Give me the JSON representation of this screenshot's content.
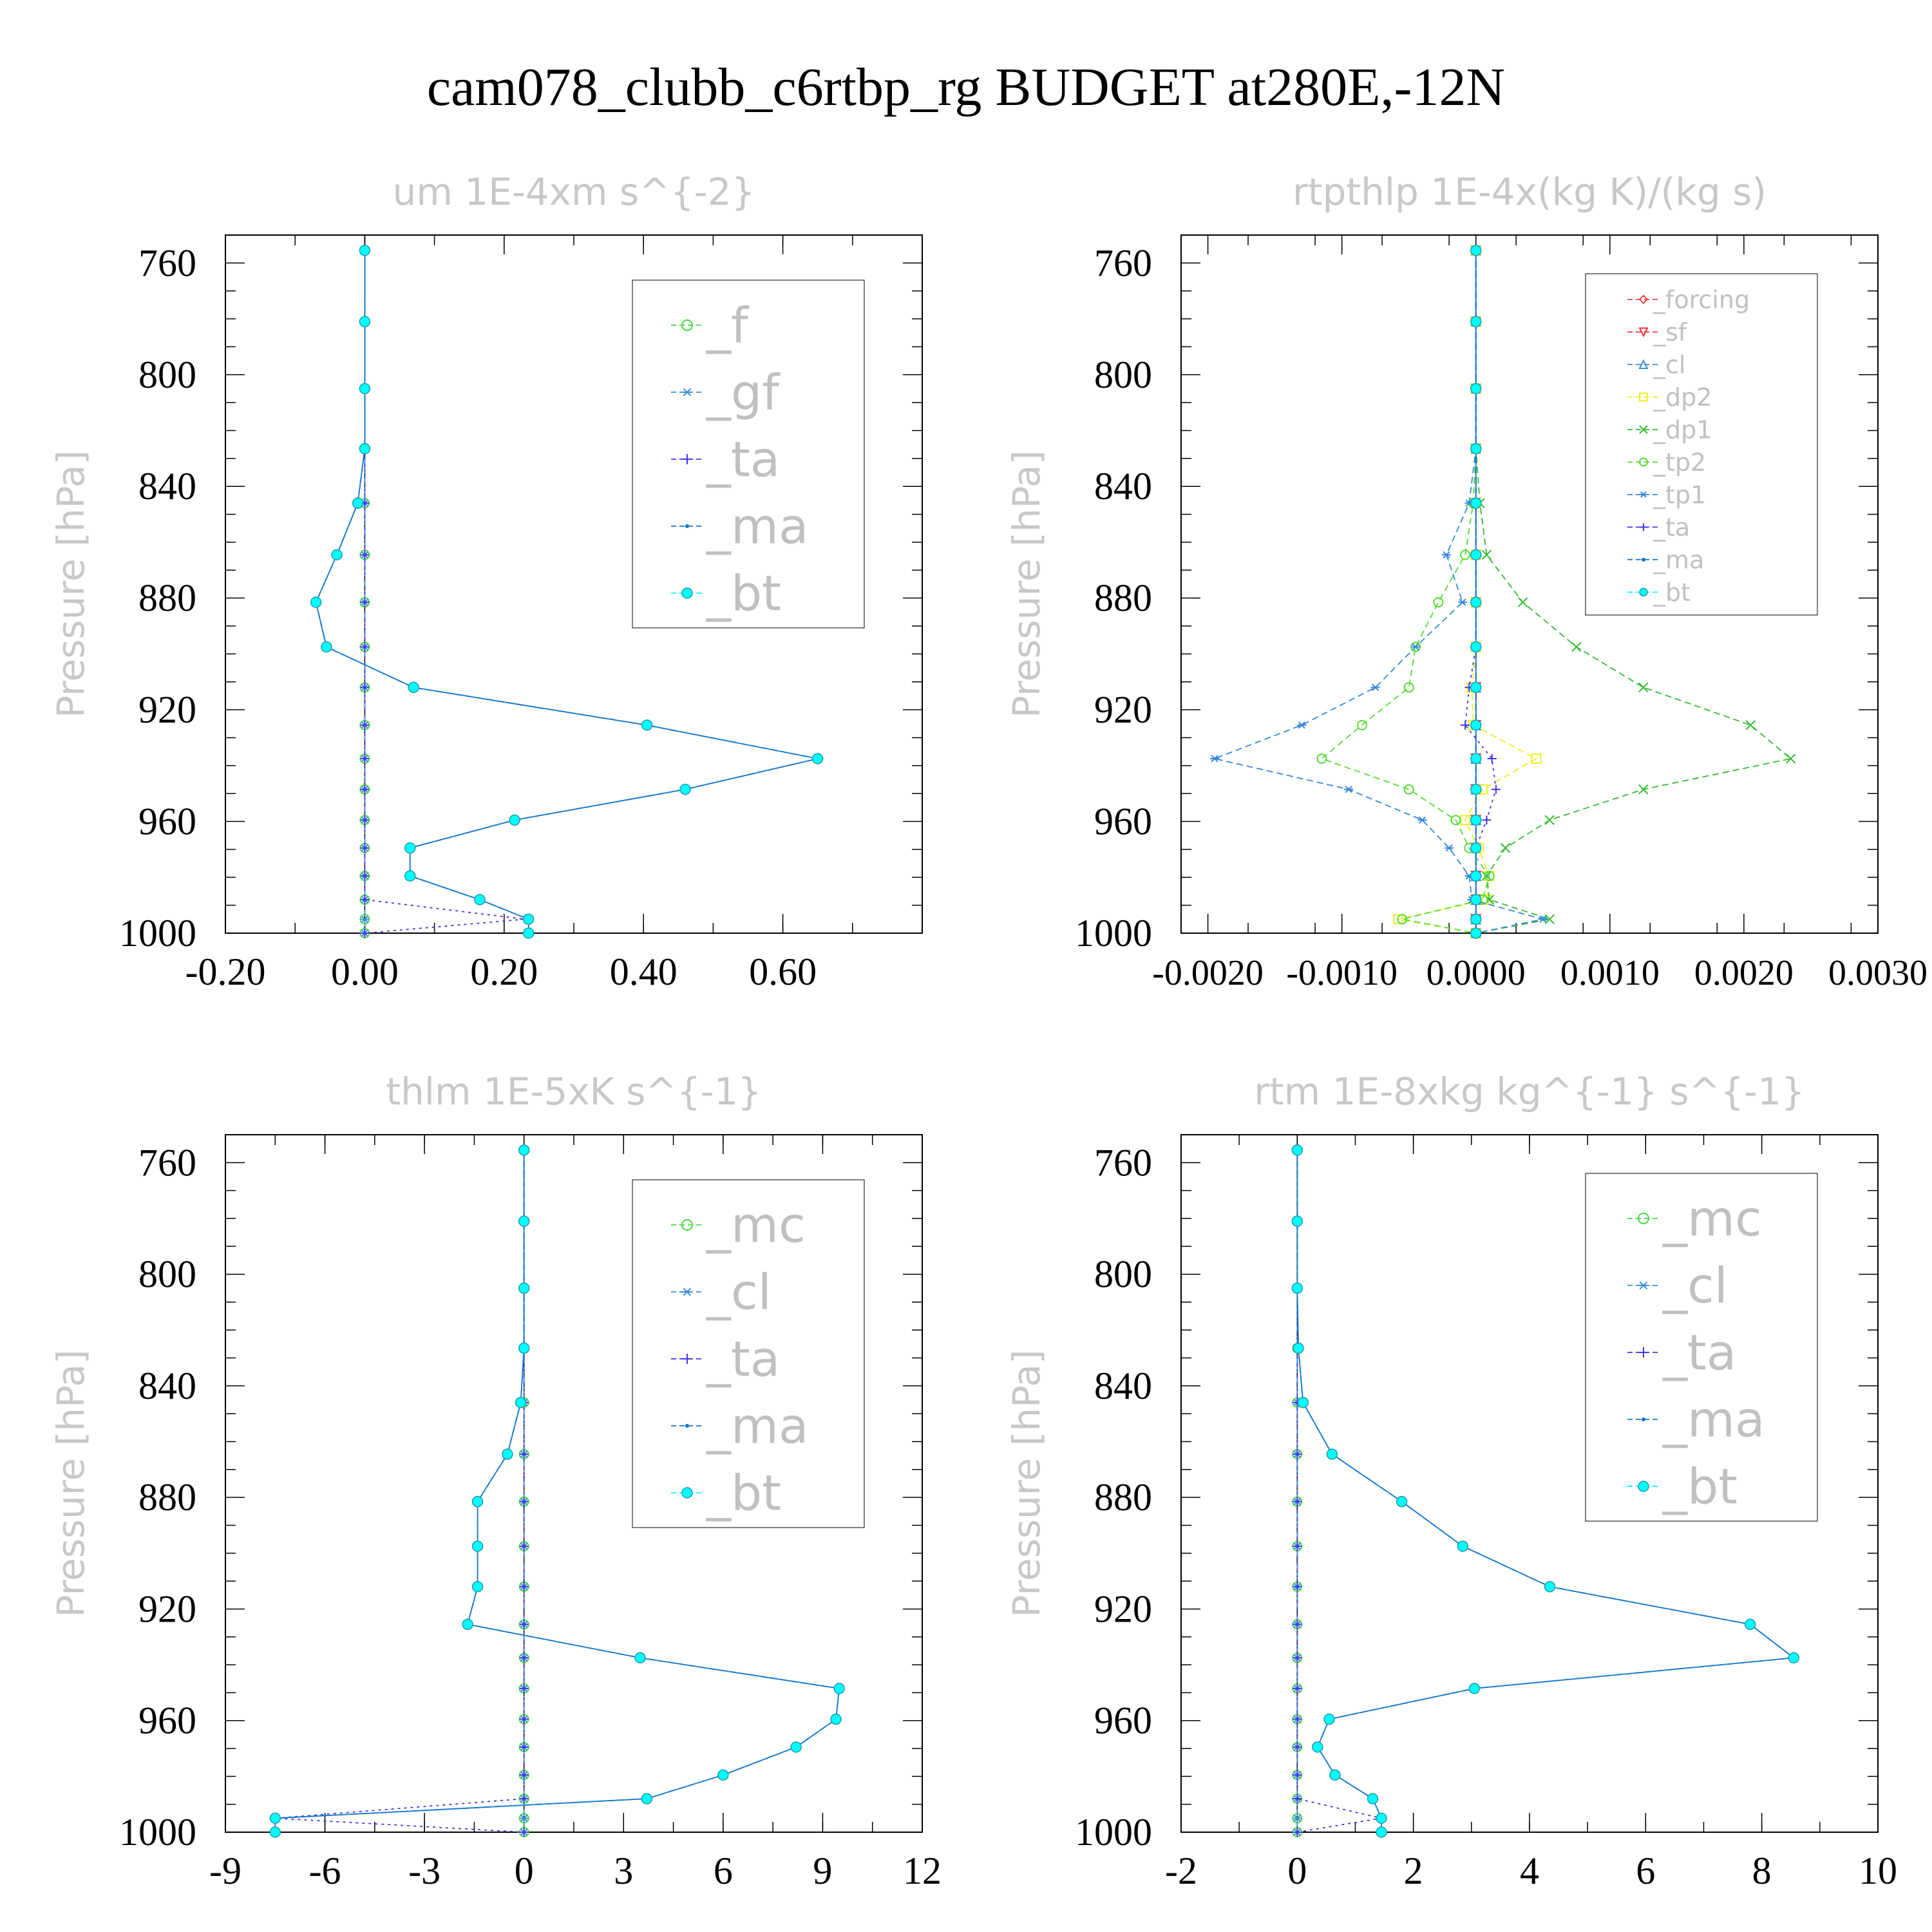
{
  "title": "cam078_clubb_c6rtbp_rg  BUDGET at280E,-12N",
  "colors": {
    "_f": "#44dd44",
    "_gf": "#3a8fd6",
    "_ta": "#4433ee",
    "_ma": "#1177cc",
    "_bt": "#00ffff",
    "_mc": "#44dd44",
    "_cl": "#3a8fd6",
    "_forcing": "#ee4444",
    "_sf": "#ee3333",
    "_dp2": "#eeee22",
    "_dp1": "#33bb33",
    "_tp2": "#55dd33",
    "_tp1": "#3388dd"
  },
  "chart_data": [
    {
      "type": "line",
      "title": "um  1E-4xm s^{-2}",
      "ylabel": "Pressure [hPa]",
      "xlabel": "",
      "x_ticks": [
        "-0.20",
        "0.00",
        "0.20",
        "0.40",
        "0.60"
      ],
      "y_ticks": [
        "760",
        "800",
        "840",
        "880",
        "920",
        "960",
        "1000"
      ],
      "xlim": [
        -0.2,
        0.8
      ],
      "ylim": [
        750,
        1000
      ],
      "legend": "top-right",
      "pressure": [
        755.5,
        781,
        805,
        826.5,
        846,
        864.5,
        881.5,
        897.5,
        912,
        925.5,
        937.5,
        948.5,
        959.5,
        969.5,
        979.5,
        988,
        995,
        1000
      ],
      "series": [
        {
          "name": "_f",
          "marker": "circle-open",
          "values": [
            0,
            0,
            0,
            0,
            0,
            0,
            0,
            0,
            0,
            0,
            0,
            0,
            0,
            0,
            0,
            0,
            0,
            0
          ]
        },
        {
          "name": "_gf",
          "marker": "asterisk",
          "values": [
            0,
            0,
            0,
            0,
            0,
            0,
            0,
            0,
            0,
            0,
            0,
            0,
            0,
            0,
            0,
            0,
            0,
            0
          ]
        },
        {
          "name": "_ta",
          "marker": "plus",
          "values": [
            0,
            0,
            0,
            0,
            0,
            0,
            0,
            0,
            0,
            0,
            0,
            0,
            0,
            0,
            0,
            0,
            0.23,
            0
          ]
        },
        {
          "name": "_ma",
          "marker": "dot",
          "values": [
            0,
            0,
            0,
            0,
            -0.01,
            -0.04,
            -0.07,
            -0.055,
            0.07,
            0.405,
            0.65,
            0.46,
            0.215,
            0.065,
            0.065,
            0.165,
            0.235,
            0.235
          ]
        },
        {
          "name": "_bt",
          "marker": "filled-circle",
          "values": [
            0,
            0,
            0,
            0,
            -0.01,
            -0.04,
            -0.07,
            -0.055,
            0.07,
            0.405,
            0.65,
            0.46,
            0.215,
            0.065,
            0.065,
            0.165,
            0.235,
            0.235
          ]
        }
      ]
    },
    {
      "type": "line",
      "title": "rtpthlp  1E-4x(kg K)/(kg s)",
      "ylabel": "Pressure [hPa]",
      "xlabel": "",
      "x_ticks": [
        "-0.0020",
        "-0.0010",
        "0.0000",
        "0.0010",
        "0.0020",
        "0.0030"
      ],
      "y_ticks": [
        "760",
        "800",
        "840",
        "880",
        "920",
        "960",
        "1000"
      ],
      "xlim": [
        -0.0022,
        0.003
      ],
      "ylim": [
        750,
        1000
      ],
      "legend": "top-right",
      "pressure": [
        755.5,
        781,
        805,
        826.5,
        846,
        864.5,
        881.5,
        897.5,
        912,
        925.5,
        937.5,
        948.5,
        959.5,
        969.5,
        979.5,
        988,
        995,
        1000
      ],
      "series": [
        {
          "name": "_forcing",
          "marker": "diamond-open",
          "values": [
            0,
            0,
            0,
            0,
            0,
            0,
            0,
            0,
            0,
            0,
            0,
            0,
            0,
            0,
            0,
            0,
            0,
            0
          ]
        },
        {
          "name": "_sf",
          "marker": "triangle-down-open",
          "values": [
            0,
            0,
            0,
            0,
            0,
            0,
            0,
            0,
            0,
            0,
            0,
            0,
            0,
            0,
            0,
            0,
            0,
            0
          ]
        },
        {
          "name": "_cl",
          "marker": "triangle-open",
          "values": [
            0,
            0,
            0,
            0,
            0,
            0,
            0,
            0,
            0,
            0,
            0,
            0,
            0,
            0,
            0,
            0,
            0,
            0
          ]
        },
        {
          "name": "_dp2",
          "marker": "square-open",
          "values": [
            0,
            0,
            0,
            0,
            0,
            0,
            0,
            0,
            -3e-05,
            -2e-05,
            0.00045,
            5e-05,
            -8e-05,
            2e-05,
            0.0001,
            8e-05,
            -0.00058,
            0
          ]
        },
        {
          "name": "_dp1",
          "marker": "x",
          "values": [
            0,
            0,
            0,
            0,
            3e-05,
            8e-05,
            0.00035,
            0.00075,
            0.00125,
            0.00205,
            0.00235,
            0.00125,
            0.00055,
            0.00022,
            8e-05,
            0.0001,
            0.00055,
            0
          ]
        },
        {
          "name": "_tp2",
          "marker": "circle-open",
          "values": [
            0,
            0,
            0,
            0,
            -2e-05,
            -8e-05,
            -0.00028,
            -0.00045,
            -0.0005,
            -0.00085,
            -0.00115,
            -0.0005,
            -0.00015,
            -5e-05,
            0.0001,
            5e-05,
            -0.00055,
            0
          ]
        },
        {
          "name": "_tp1",
          "marker": "asterisk",
          "values": [
            0,
            0,
            0,
            0,
            -5e-05,
            -0.00022,
            -0.0001,
            -0.00045,
            -0.00075,
            -0.0013,
            -0.00195,
            -0.00095,
            -0.0004,
            -0.0002,
            -5e-05,
            -3e-05,
            0.0005,
            0
          ]
        },
        {
          "name": "_ta",
          "marker": "plus",
          "values": [
            0,
            0,
            0,
            0,
            0,
            0,
            0,
            0,
            -5e-05,
            -8e-05,
            0.00012,
            0.00015,
            8e-05,
            0,
            0,
            0,
            0,
            0
          ]
        },
        {
          "name": "_ma",
          "marker": "dot",
          "values": [
            0,
            0,
            0,
            0,
            0,
            0,
            0,
            0,
            0,
            0,
            0,
            0,
            0,
            0,
            0,
            0,
            0,
            0
          ]
        },
        {
          "name": "_bt",
          "marker": "filled-circle",
          "values": [
            0,
            0,
            0,
            0,
            0,
            0,
            0,
            0,
            0,
            0,
            0,
            0,
            0,
            0,
            0,
            0,
            0,
            0
          ]
        }
      ]
    },
    {
      "type": "line",
      "title": "thlm  1E-5xK s^{-1}",
      "ylabel": "Pressure [hPa]",
      "xlabel": "",
      "x_ticks": [
        "-9",
        "-6",
        "-3",
        "0",
        "3",
        "6",
        "9",
        "12"
      ],
      "y_ticks": [
        "760",
        "800",
        "840",
        "880",
        "920",
        "960",
        "1000"
      ],
      "xlim": [
        -9,
        12
      ],
      "ylim": [
        750,
        1000
      ],
      "legend": "top-right",
      "pressure": [
        755.5,
        781,
        805,
        826.5,
        846,
        864.5,
        881.5,
        897.5,
        912,
        925.5,
        937.5,
        948.5,
        959.5,
        969.5,
        979.5,
        988,
        995,
        1000
      ],
      "series": [
        {
          "name": "_mc",
          "marker": "circle-open",
          "values": [
            0,
            0,
            0,
            0,
            0,
            0,
            0,
            0,
            0,
            0,
            0,
            0,
            0,
            0,
            0,
            0,
            0,
            0
          ]
        },
        {
          "name": "_cl",
          "marker": "asterisk",
          "values": [
            0,
            0,
            0,
            0,
            0,
            0,
            0,
            0,
            0,
            0,
            0,
            0,
            0,
            0,
            0,
            0,
            0,
            0
          ]
        },
        {
          "name": "_ta",
          "marker": "plus",
          "values": [
            0,
            0,
            0,
            0,
            0,
            0,
            0,
            0,
            0,
            0,
            0,
            0,
            0,
            0,
            0,
            0,
            -7.5,
            0
          ]
        },
        {
          "name": "_ma",
          "marker": "dot",
          "values": [
            0,
            0,
            0,
            0,
            -0.1,
            -0.5,
            -1.4,
            -1.4,
            -1.4,
            -1.7,
            3.5,
            9.5,
            9.4,
            8.2,
            6,
            3.7,
            -7.5,
            -7.5
          ]
        },
        {
          "name": "_bt",
          "marker": "filled-circle",
          "values": [
            0,
            0,
            0,
            0,
            -0.1,
            -0.5,
            -1.4,
            -1.4,
            -1.4,
            -1.7,
            3.5,
            9.5,
            9.4,
            8.2,
            6,
            3.7,
            -7.5,
            -7.5
          ]
        }
      ]
    },
    {
      "type": "line",
      "title": "rtm  1E-8xkg kg^{-1} s^{-1}",
      "ylabel": "Pressure [hPa]",
      "xlabel": "",
      "x_ticks": [
        "-2",
        "0",
        "2",
        "4",
        "6",
        "8",
        "10"
      ],
      "y_ticks": [
        "760",
        "800",
        "840",
        "880",
        "920",
        "960",
        "1000"
      ],
      "xlim": [
        -2,
        10
      ],
      "ylim": [
        750,
        1000
      ],
      "legend": "top-right",
      "pressure": [
        755.5,
        781,
        805,
        826.5,
        846,
        864.5,
        881.5,
        897.5,
        912,
        925.5,
        937.5,
        948.5,
        959.5,
        969.5,
        979.5,
        988,
        995,
        1000
      ],
      "series": [
        {
          "name": "_mc",
          "marker": "circle-open",
          "values": [
            0,
            0,
            0,
            0,
            0,
            0,
            0,
            0,
            0,
            0,
            0,
            0,
            0,
            0,
            0,
            0,
            0,
            0
          ]
        },
        {
          "name": "_cl",
          "marker": "asterisk",
          "values": [
            0,
            0,
            0,
            0,
            0,
            0,
            0,
            0,
            0,
            0,
            0,
            0,
            0,
            0,
            0,
            0,
            0,
            0
          ]
        },
        {
          "name": "_ta",
          "marker": "plus",
          "values": [
            0,
            0,
            0,
            0,
            0,
            0,
            0,
            0,
            0,
            0,
            0,
            0,
            0,
            0,
            0,
            0,
            1.45,
            0
          ]
        },
        {
          "name": "_ma",
          "marker": "dot",
          "values": [
            0,
            0,
            0,
            0.02,
            0.1,
            0.6,
            1.8,
            2.85,
            4.35,
            7.8,
            8.55,
            3.05,
            0.55,
            0.35,
            0.65,
            1.3,
            1.45,
            1.45
          ]
        },
        {
          "name": "_bt",
          "marker": "filled-circle",
          "values": [
            0,
            0,
            0,
            0.02,
            0.1,
            0.6,
            1.8,
            2.85,
            4.35,
            7.8,
            8.55,
            3.05,
            0.55,
            0.35,
            0.65,
            1.3,
            1.45,
            1.45
          ]
        }
      ]
    }
  ]
}
